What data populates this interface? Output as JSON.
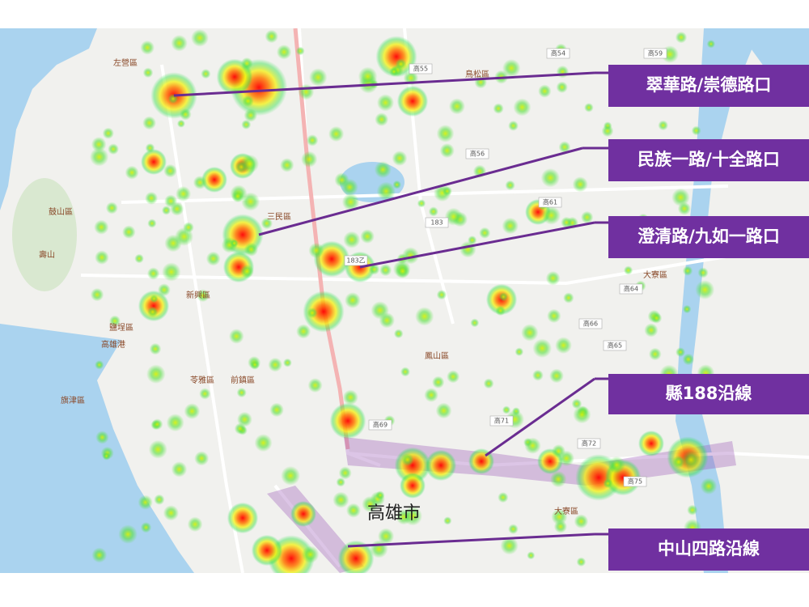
{
  "map": {
    "city_label": "高雄市",
    "callouts": [
      "翠華路/崇德路口",
      "民族一路/十全路口",
      "澄清路/九如一路口",
      "縣188沿線",
      "中山四路沿線"
    ],
    "district_labels": [
      "左營區",
      "鼓山區",
      "三民區",
      "苓雅區",
      "前鎮區",
      "鳳山區",
      "鳥松區",
      "大寮區",
      "鹽埕區",
      "旗津區",
      "高雄港",
      "新興區",
      "大寮區",
      "壽山"
    ],
    "road_labels": [
      "183",
      "183乙",
      "高56",
      "高55",
      "高54",
      "高59",
      "高61",
      "高64",
      "高65",
      "高66",
      "高69",
      "高71",
      "高72",
      "高75"
    ]
  }
}
